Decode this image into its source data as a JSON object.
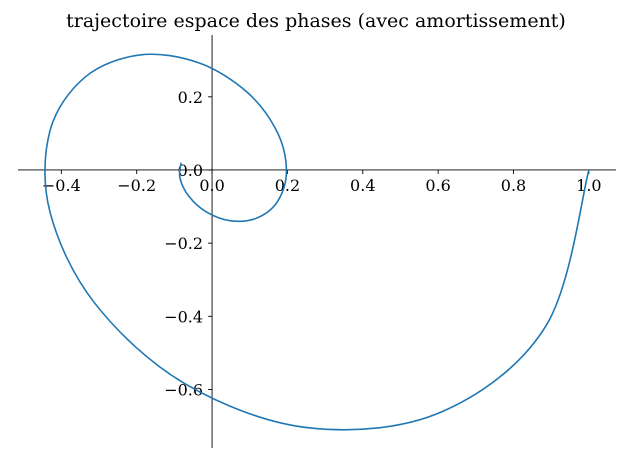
{
  "chart_data": {
    "type": "line",
    "title": "trajectoire espace des phases (avec amortissement)",
    "xlabel": "",
    "ylabel": "",
    "xlim": [
      -0.515,
      1.072
    ],
    "ylim": [
      -0.76,
      0.369
    ],
    "grid": false,
    "spines": "centered-at-zero",
    "x_ticks": [
      -0.4,
      -0.2,
      0.0,
      0.2,
      0.4,
      0.6,
      0.8,
      1.0
    ],
    "x_tick_labels": [
      "−0.4",
      "−0.2",
      "0.0",
      "0.2",
      "0.4",
      "0.6",
      "0.8",
      "1.0"
    ],
    "y_ticks": [
      -0.6,
      -0.4,
      -0.2,
      0.0,
      0.2
    ],
    "y_tick_labels": [
      "−0.6",
      "−0.4",
      "−0.2",
      "0.0",
      "0.2"
    ],
    "series": [
      {
        "color": "#1f77b4",
        "x": [
          1.0,
          0.8872,
          0.6083,
          0.2575,
          -0.0704,
          -0.3103,
          -0.4298,
          -0.4306,
          -0.3373,
          -0.1917,
          -0.0366,
          0.0922,
          0.1722,
          0.1974,
          0.1743,
          0.1187,
          0.0494,
          -0.0151,
          -0.062,
          -0.0852,
          -0.0823
        ],
        "y": [
          0.0,
          -0.4242,
          -0.6616,
          -0.7049,
          -0.5851,
          -0.3655,
          -0.116,
          0.1053,
          0.2537,
          0.3144,
          0.2934,
          0.2135,
          0.1052,
          -0.0021,
          -0.0852,
          -0.1314,
          -0.1389,
          -0.1147,
          -0.0711,
          -0.0216,
          0.02
        ]
      }
    ]
  }
}
